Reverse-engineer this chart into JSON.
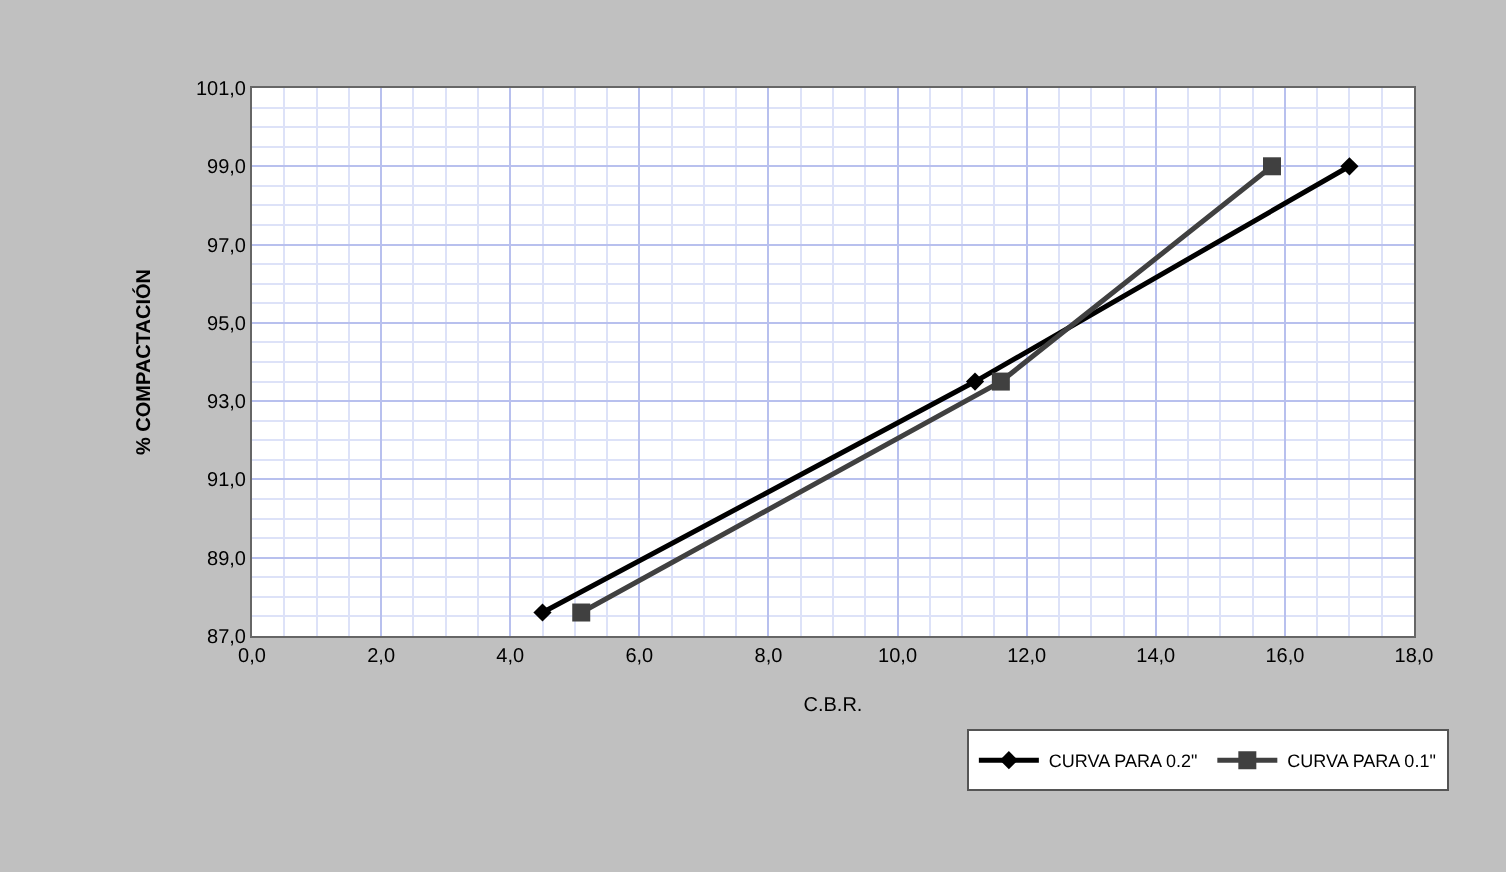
{
  "chart_data": {
    "type": "line",
    "xlabel": "C.B.R.",
    "ylabel": "% COMPACTACIÓN",
    "series": [
      {
        "name": "CURVA PARA 0.2\"",
        "color": "#000000",
        "marker": "diamond",
        "x": [
          4.5,
          11.2,
          17.0
        ],
        "values": [
          87.6,
          93.5,
          99.0
        ]
      },
      {
        "name": "CURVA PARA 0.1\"",
        "color": "#404040",
        "marker": "square",
        "x": [
          5.1,
          11.6,
          15.8
        ],
        "values": [
          87.6,
          93.5,
          99.0
        ]
      }
    ],
    "xlim": [
      0,
      18
    ],
    "ylim": [
      87,
      101
    ],
    "xticks": [
      {
        "value": 0,
        "label": "0,0"
      },
      {
        "value": 2,
        "label": "2,0"
      },
      {
        "value": 4,
        "label": "4,0"
      },
      {
        "value": 6,
        "label": "6,0"
      },
      {
        "value": 8,
        "label": "8,0"
      },
      {
        "value": 10,
        "label": "10,0"
      },
      {
        "value": 12,
        "label": "12,0"
      },
      {
        "value": 14,
        "label": "14,0"
      },
      {
        "value": 16,
        "label": "16,0"
      },
      {
        "value": 18,
        "label": "18,0"
      }
    ],
    "yticks": [
      {
        "value": 87,
        "label": "87,0"
      },
      {
        "value": 89,
        "label": "89,0"
      },
      {
        "value": 91,
        "label": "91,0"
      },
      {
        "value": 93,
        "label": "93,0"
      },
      {
        "value": 95,
        "label": "95,0"
      },
      {
        "value": 97,
        "label": "97,0"
      },
      {
        "value": 99,
        "label": "99,0"
      },
      {
        "value": 101,
        "label": "101,0"
      }
    ],
    "grid": true,
    "legend": "bottom right",
    "line_style": "solid"
  }
}
